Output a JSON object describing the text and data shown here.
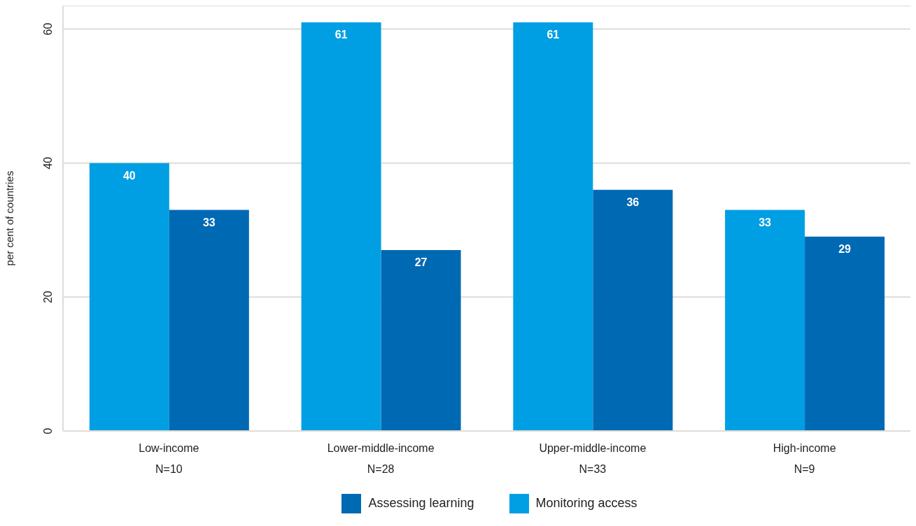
{
  "chart_data": {
    "type": "bar",
    "ylabel": "per cent of countries",
    "categories": [
      "Low-income\nN=10",
      "Lower-middle-income\nN=28",
      "Upper-middle-income\nN=33",
      "High-income\nN=9"
    ],
    "series": [
      {
        "name": "Monitoring access",
        "color": "#009fe3",
        "values": [
          40,
          61,
          61,
          33
        ]
      },
      {
        "name": "Assessing learning",
        "color": "#0069b4",
        "values": [
          33,
          27,
          36,
          29
        ]
      }
    ],
    "ylim": [
      0,
      63.5
    ],
    "yticks": [
      0,
      20,
      40,
      60
    ],
    "grid": "y",
    "legend": "bottom",
    "data_labels": true
  }
}
